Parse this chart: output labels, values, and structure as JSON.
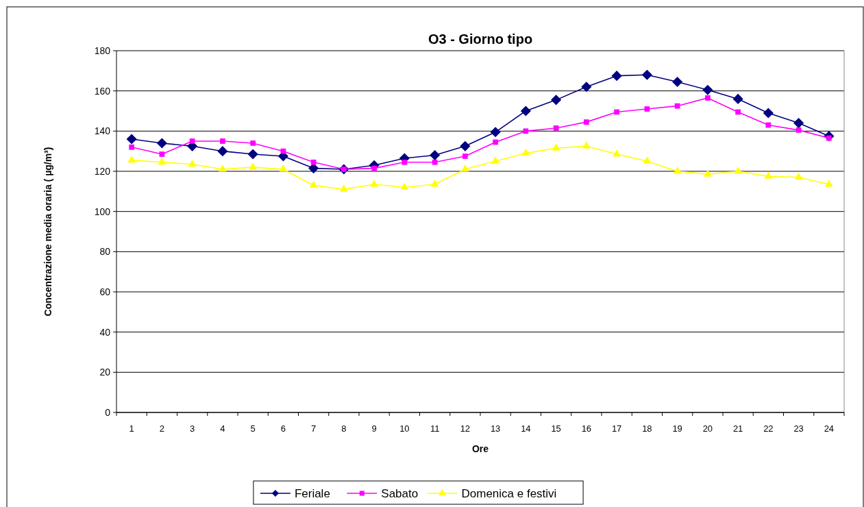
{
  "chart_data": {
    "type": "line",
    "title": "O3 - Giorno tipo",
    "xlabel": "Ore",
    "ylabel": "Concentrazione media oraria (  µg/m³)",
    "categories": [
      "1",
      "2",
      "3",
      "4",
      "5",
      "6",
      "7",
      "8",
      "9",
      "10",
      "11",
      "12",
      "13",
      "14",
      "15",
      "16",
      "17",
      "18",
      "19",
      "20",
      "21",
      "22",
      "23",
      "24"
    ],
    "series": [
      {
        "name": "Feriale",
        "color": "#000080",
        "marker": "diamond",
        "values": [
          136,
          134,
          132.5,
          130,
          128.5,
          127.5,
          121.5,
          121,
          123,
          126.5,
          128,
          132.5,
          139.5,
          150,
          155.5,
          162,
          167.5,
          168,
          164.5,
          160.5,
          156,
          149,
          144,
          137.5
        ]
      },
      {
        "name": "Sabato",
        "color": "#ff00ff",
        "marker": "square",
        "values": [
          132,
          128.5,
          135,
          135,
          134,
          130,
          124.5,
          121,
          121.5,
          124.5,
          124.5,
          127.5,
          134.5,
          140,
          141.5,
          144.5,
          149.5,
          151,
          152.5,
          156.5,
          149.5,
          143,
          140.5,
          136.5
        ]
      },
      {
        "name": "Domenica e festivi",
        "color": "#ffff00",
        "marker": "triangle",
        "values": [
          125.5,
          124.5,
          123.5,
          121,
          122,
          121,
          113,
          111,
          113.5,
          112,
          113.5,
          121,
          125,
          129,
          131.5,
          132.5,
          128.5,
          125,
          120,
          118.5,
          120,
          117.5,
          117,
          113.5
        ]
      }
    ],
    "ylim": [
      0,
      180
    ],
    "yticks": [
      0,
      20,
      40,
      60,
      80,
      100,
      120,
      140,
      160,
      180
    ],
    "grid": "y",
    "legend": "bottom"
  }
}
